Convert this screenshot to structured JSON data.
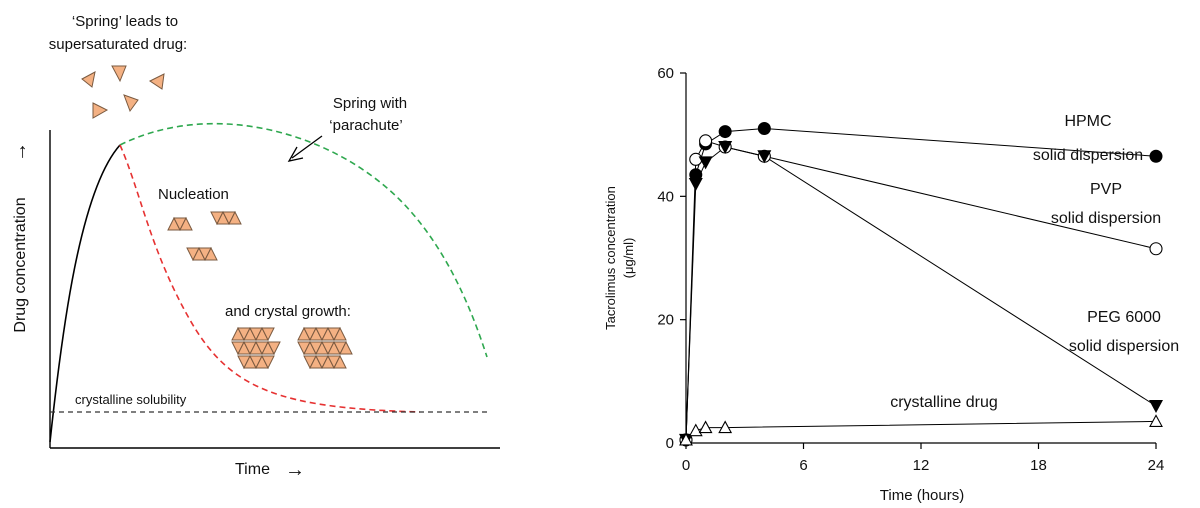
{
  "left_panel": {
    "spring_caption_line1": "‘Spring’ leads to",
    "spring_caption_line2": "supersaturated drug:",
    "parachute_label_line1": "Spring with",
    "parachute_label_line2": "‘parachute’",
    "nucleation_label": "Nucleation",
    "crystal_growth_label": "and crystal growth:",
    "solubility_label": "crystalline solubility",
    "y_axis_label": "Drug concentration",
    "y_axis_arrow": "→",
    "x_axis_label": "Time",
    "x_axis_arrow": "→",
    "colors": {
      "spring": "#000000",
      "parachute": "#2fa84f",
      "precipitation": "#e63232",
      "solubility": "#333333",
      "particle_fill": "#f4b183",
      "particle_stroke": "#7a5a40"
    }
  },
  "chart_data": {
    "type": "line",
    "xlabel": "Time (hours)",
    "ylabel_line1": "Tacrolimus concentration",
    "ylabel_line2": "(μg/ml)",
    "xlim": [
      0,
      24
    ],
    "ylim": [
      0,
      60
    ],
    "xticks": [
      0,
      6,
      12,
      18,
      24
    ],
    "yticks": [
      0,
      20,
      40,
      60
    ],
    "grid": false,
    "series": [
      {
        "name_line1": "HPMC",
        "name_line2": "solid dispersion",
        "marker": "filled-circle",
        "x": [
          0,
          0.5,
          1,
          2,
          4,
          24
        ],
        "y": [
          0.5,
          43.5,
          48.5,
          50.5,
          51,
          46.5
        ]
      },
      {
        "name_line1": "PVP",
        "name_line2": "solid dispersion",
        "marker": "open-circle",
        "x": [
          0,
          0.5,
          1,
          2,
          4,
          24
        ],
        "y": [
          0.5,
          46,
          49,
          48,
          46.5,
          31.5
        ]
      },
      {
        "name_line1": "PEG 6000",
        "name_line2": "solid dispersion",
        "marker": "filled-triangle-down",
        "x": [
          0,
          0.5,
          1,
          2,
          4,
          24
        ],
        "y": [
          0.5,
          42,
          45.5,
          48,
          46.5,
          6
        ]
      },
      {
        "name_line1": "crystalline drug",
        "name_line2": "",
        "marker": "open-triangle-up",
        "x": [
          0,
          0.5,
          1,
          2,
          24
        ],
        "y": [
          0.5,
          2,
          2.5,
          2.5,
          3.5
        ]
      }
    ]
  }
}
